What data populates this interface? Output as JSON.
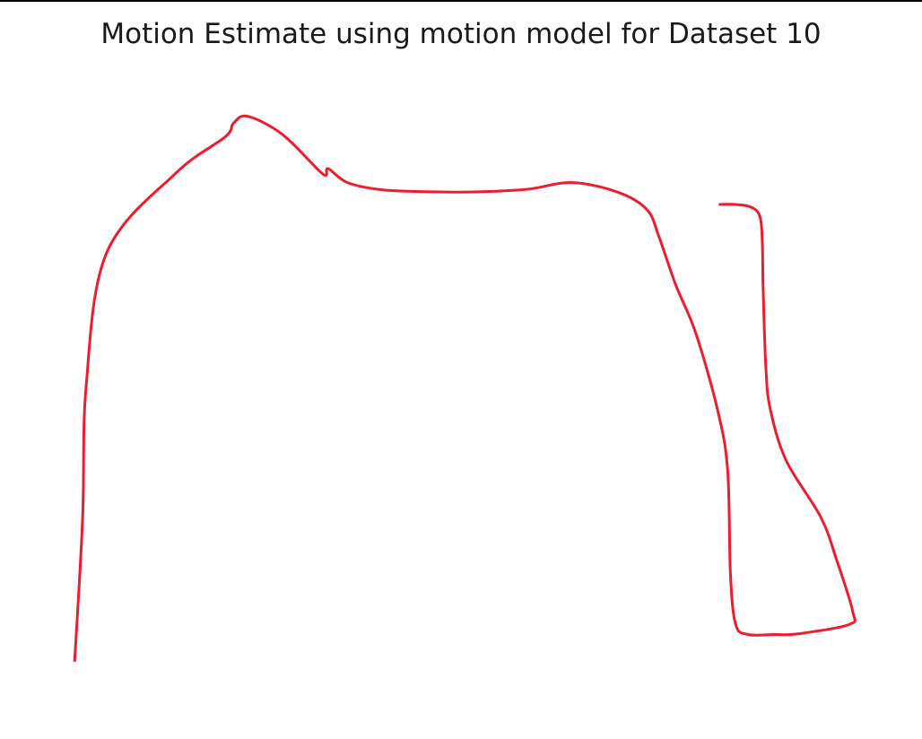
{
  "chart_data": {
    "type": "line",
    "title": "Motion Estimate using motion model for Dataset 10",
    "xlabel": "",
    "ylabel": "",
    "axes_visible": false,
    "grid": false,
    "legend": "none",
    "xlim": [
      0,
      100
    ],
    "ylim": [
      0,
      100
    ],
    "series": [
      {
        "color": "#ee1c2e",
        "x": [
          6.4,
          7.3,
          7.7,
          10.0,
          17.8,
          23.4,
          24.3,
          25.9,
          29.9,
          34.4,
          35.0,
          37.2,
          41.2,
          47.1,
          52.0,
          57.5,
          62.6,
          67.8,
          71.0,
          72.3,
          74.2,
          76.5,
          79.0,
          80.1,
          80.4,
          81.0,
          82.4,
          85.3,
          88.0,
          93.8,
          94.2,
          92.4,
          90.6,
          86.7,
          84.9,
          84.4,
          84.1,
          84.0,
          83.7,
          82.7,
          81.0,
          79.1
        ],
        "y": [
          8.4,
          30.0,
          50.0,
          70.0,
          82.0,
          87.5,
          89.5,
          90.6,
          87.8,
          81.9,
          82.7,
          80.6,
          79.5,
          79.2,
          79.2,
          79.6,
          80.6,
          79.1,
          76.5,
          72.6,
          65.3,
          57.9,
          46.1,
          37.1,
          21.7,
          14.0,
          12.5,
          12.5,
          12.6,
          14.0,
          16.0,
          23.7,
          30.2,
          38.7,
          46.5,
          52.8,
          64.4,
          71.8,
          75.6,
          76.9,
          77.3,
          77.3
        ]
      }
    ]
  }
}
